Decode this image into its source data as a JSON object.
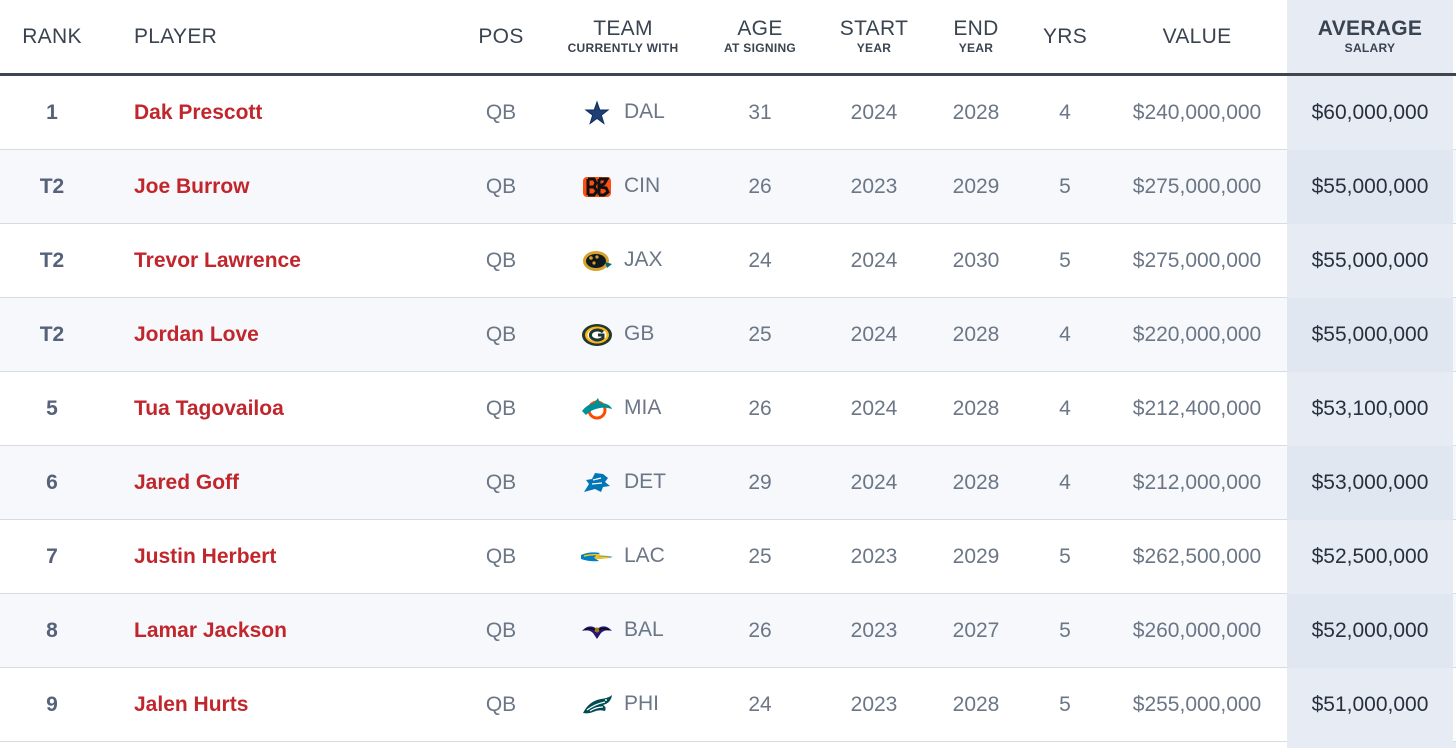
{
  "headers": {
    "rank": "RANK",
    "player": "PLAYER",
    "pos": "POS",
    "team": "TEAM",
    "team_sub": "CURRENTLY WITH",
    "age": "AGE",
    "age_sub": "AT SIGNING",
    "start": "START",
    "start_sub": "YEAR",
    "end": "END",
    "end_sub": "YEAR",
    "yrs": "YRS",
    "value": "VALUE",
    "average": "AVERAGE",
    "average_sub": "SALARY"
  },
  "colors": {
    "player_name": "#c1262c",
    "header_text": "#3a4350",
    "average_column_bg": "#e6ebf4"
  },
  "rows": [
    {
      "rank": "1",
      "player": "Dak Prescott",
      "pos": "QB",
      "team": "DAL",
      "team_icon": "cowboys-star-icon",
      "age": "31",
      "start": "2024",
      "end": "2028",
      "yrs": "4",
      "value": "$240,000,000",
      "average": "$60,000,000"
    },
    {
      "rank": "T2",
      "player": "Joe Burrow",
      "pos": "QB",
      "team": "CIN",
      "team_icon": "bengals-icon",
      "age": "26",
      "start": "2023",
      "end": "2029",
      "yrs": "5",
      "value": "$275,000,000",
      "average": "$55,000,000"
    },
    {
      "rank": "T2",
      "player": "Trevor Lawrence",
      "pos": "QB",
      "team": "JAX",
      "team_icon": "jaguars-icon",
      "age": "24",
      "start": "2024",
      "end": "2030",
      "yrs": "5",
      "value": "$275,000,000",
      "average": "$55,000,000"
    },
    {
      "rank": "T2",
      "player": "Jordan Love",
      "pos": "QB",
      "team": "GB",
      "team_icon": "packers-g-icon",
      "age": "25",
      "start": "2024",
      "end": "2028",
      "yrs": "4",
      "value": "$220,000,000",
      "average": "$55,000,000"
    },
    {
      "rank": "5",
      "player": "Tua Tagovailoa",
      "pos": "QB",
      "team": "MIA",
      "team_icon": "dolphins-icon",
      "age": "26",
      "start": "2024",
      "end": "2028",
      "yrs": "4",
      "value": "$212,400,000",
      "average": "$53,100,000"
    },
    {
      "rank": "6",
      "player": "Jared Goff",
      "pos": "QB",
      "team": "DET",
      "team_icon": "lions-icon",
      "age": "29",
      "start": "2024",
      "end": "2028",
      "yrs": "4",
      "value": "$212,000,000",
      "average": "$53,000,000"
    },
    {
      "rank": "7",
      "player": "Justin Herbert",
      "pos": "QB",
      "team": "LAC",
      "team_icon": "chargers-bolt-icon",
      "age": "25",
      "start": "2023",
      "end": "2029",
      "yrs": "5",
      "value": "$262,500,000",
      "average": "$52,500,000"
    },
    {
      "rank": "8",
      "player": "Lamar Jackson",
      "pos": "QB",
      "team": "BAL",
      "team_icon": "ravens-icon",
      "age": "26",
      "start": "2023",
      "end": "2027",
      "yrs": "5",
      "value": "$260,000,000",
      "average": "$52,000,000"
    },
    {
      "rank": "9",
      "player": "Jalen Hurts",
      "pos": "QB",
      "team": "PHI",
      "team_icon": "eagles-icon",
      "age": "24",
      "start": "2023",
      "end": "2028",
      "yrs": "5",
      "value": "$255,000,000",
      "average": "$51,000,000"
    }
  ]
}
